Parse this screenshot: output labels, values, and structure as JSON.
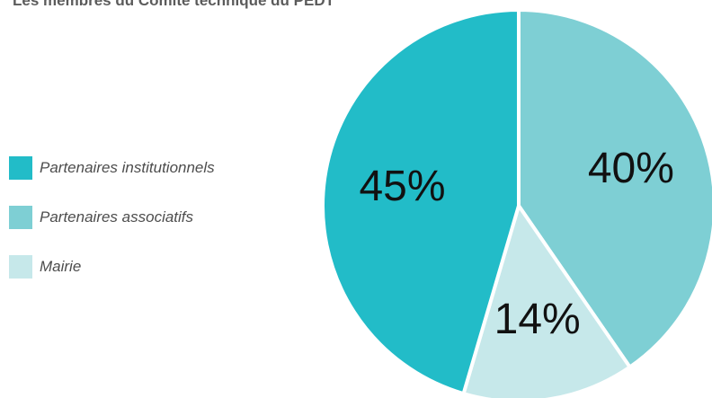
{
  "title": "Les membres du Comité technique du PEDT",
  "chart_data": {
    "type": "pie",
    "title": "Les membres du Comité technique du PEDT",
    "slices": [
      {
        "label": "Partenaires associatifs",
        "value": 40,
        "display": "40%",
        "color": "#7ecfd4"
      },
      {
        "label": "Mairie",
        "value": 14,
        "display": "14%",
        "color": "#c6e8ea"
      },
      {
        "label": "Partenaires institutionnels",
        "value": 45,
        "display": "45%",
        "color": "#22bcc8"
      }
    ],
    "legend": {
      "position": "left",
      "items": [
        {
          "label": "Partenaires institutionnels",
          "color": "#22bcc8"
        },
        {
          "label": "Partenaires associatifs",
          "color": "#7ecfd4"
        },
        {
          "label": "Mairie",
          "color": "#c6e8ea"
        }
      ]
    }
  }
}
